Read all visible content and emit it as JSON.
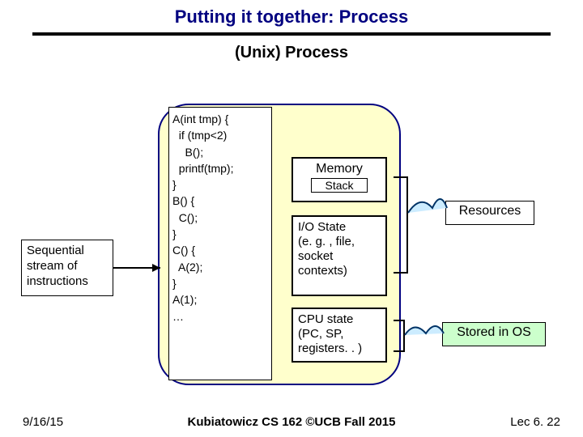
{
  "title": "Putting it together: Process",
  "subtitle": "(Unix) Process",
  "code": {
    "l1": "A(int tmp) {",
    "l2": "  if (tmp<2)",
    "l3": "    B();",
    "l4": "  printf(tmp);",
    "l5": "}",
    "l6": "B() {",
    "l7": "  C();",
    "l8": "}",
    "l9": "C() {",
    "l10": "  A(2);",
    "l11": "}",
    "l12": "A(1);",
    "l13": "…"
  },
  "memory": {
    "label": "Memory",
    "stack": "Stack"
  },
  "io": "I/O State\n(e. g. , file, socket contexts)",
  "cpu": "CPU state (PC, SP, registers. . )",
  "seq": "Sequential stream of instructions",
  "resources": "Resources",
  "stored": "Stored in OS",
  "footer": {
    "date": "9/16/15",
    "mid": "Kubiatowicz CS 162 ©UCB Fall 2015",
    "right": "Lec 6. 22"
  },
  "colors": {
    "title": "#000080",
    "process_bg": "#ffffcc",
    "process_border": "#000080",
    "stored_bg": "#ccffcc",
    "cloud_fill": "#ccecff",
    "cloud_stroke": "#003366"
  }
}
